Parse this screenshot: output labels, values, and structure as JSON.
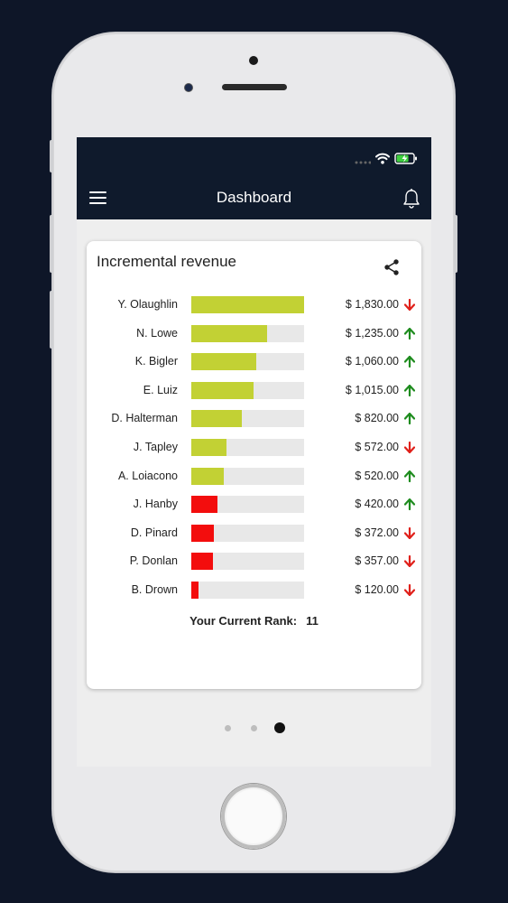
{
  "header": {
    "title": "Dashboard"
  },
  "card": {
    "title": "Incremental revenue",
    "rank_label": "Your Current Rank:",
    "rank_value": "11",
    "max_amount": 1830,
    "rows": [
      {
        "name": "Y. Olaughlin",
        "amount": "$ 1,830.00",
        "value": 1830,
        "trend": "down",
        "color": "#c2d134"
      },
      {
        "name": "N. Lowe",
        "amount": "$ 1,235.00",
        "value": 1235,
        "trend": "up",
        "color": "#c2d134"
      },
      {
        "name": "K. Bigler",
        "amount": "$ 1,060.00",
        "value": 1060,
        "trend": "up",
        "color": "#c2d134"
      },
      {
        "name": "E. Luiz",
        "amount": "$ 1,015.00",
        "value": 1015,
        "trend": "up",
        "color": "#c2d134"
      },
      {
        "name": "D. Halterman",
        "amount": "$ 820.00",
        "value": 820,
        "trend": "up",
        "color": "#c2d134"
      },
      {
        "name": "J. Tapley",
        "amount": "$ 572.00",
        "value": 572,
        "trend": "down",
        "color": "#c2d134"
      },
      {
        "name": "A. Loiacono",
        "amount": "$ 520.00",
        "value": 520,
        "trend": "up",
        "color": "#c2d134"
      },
      {
        "name": "J. Hanby",
        "amount": "$ 420.00",
        "value": 420,
        "trend": "up",
        "color": "#f30d0d"
      },
      {
        "name": "D. Pinard",
        "amount": "$ 372.00",
        "value": 372,
        "trend": "down",
        "color": "#f30d0d"
      },
      {
        "name": "P. Donlan",
        "amount": "$ 357.00",
        "value": 357,
        "trend": "down",
        "color": "#f30d0d"
      },
      {
        "name": "B. Drown",
        "amount": "$ 120.00",
        "value": 120,
        "trend": "down",
        "color": "#f30d0d"
      }
    ]
  },
  "pager": {
    "count": 3,
    "active_index": 2
  },
  "colors": {
    "up": "#1e8c1e",
    "down": "#e0201a",
    "nav_bg": "#0f1a2c",
    "battery": "#3ecf3e"
  },
  "icons": [
    "menu-icon",
    "bell-icon",
    "share-icon",
    "wifi-icon",
    "battery-icon",
    "arrow-up-icon",
    "arrow-down-icon"
  ]
}
